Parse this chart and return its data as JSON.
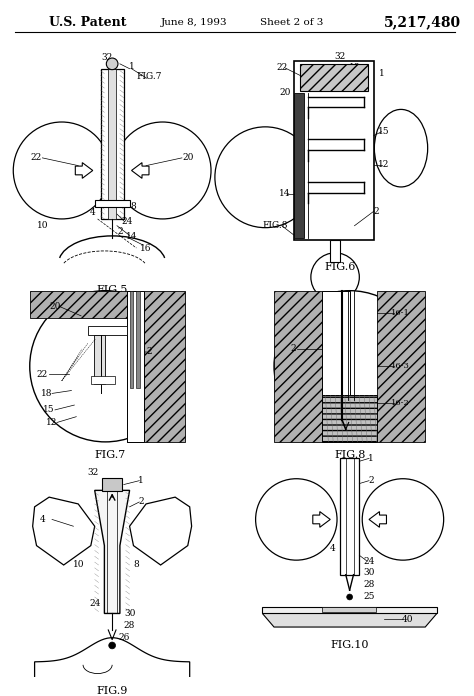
{
  "title_left": "U.S. Patent",
  "title_center": "June 8, 1993",
  "title_center2": "Sheet 2 of 3",
  "title_right": "5,217,480",
  "bg_color": "#ffffff",
  "fig_width": 4.74,
  "fig_height": 6.96,
  "dpi": 100
}
